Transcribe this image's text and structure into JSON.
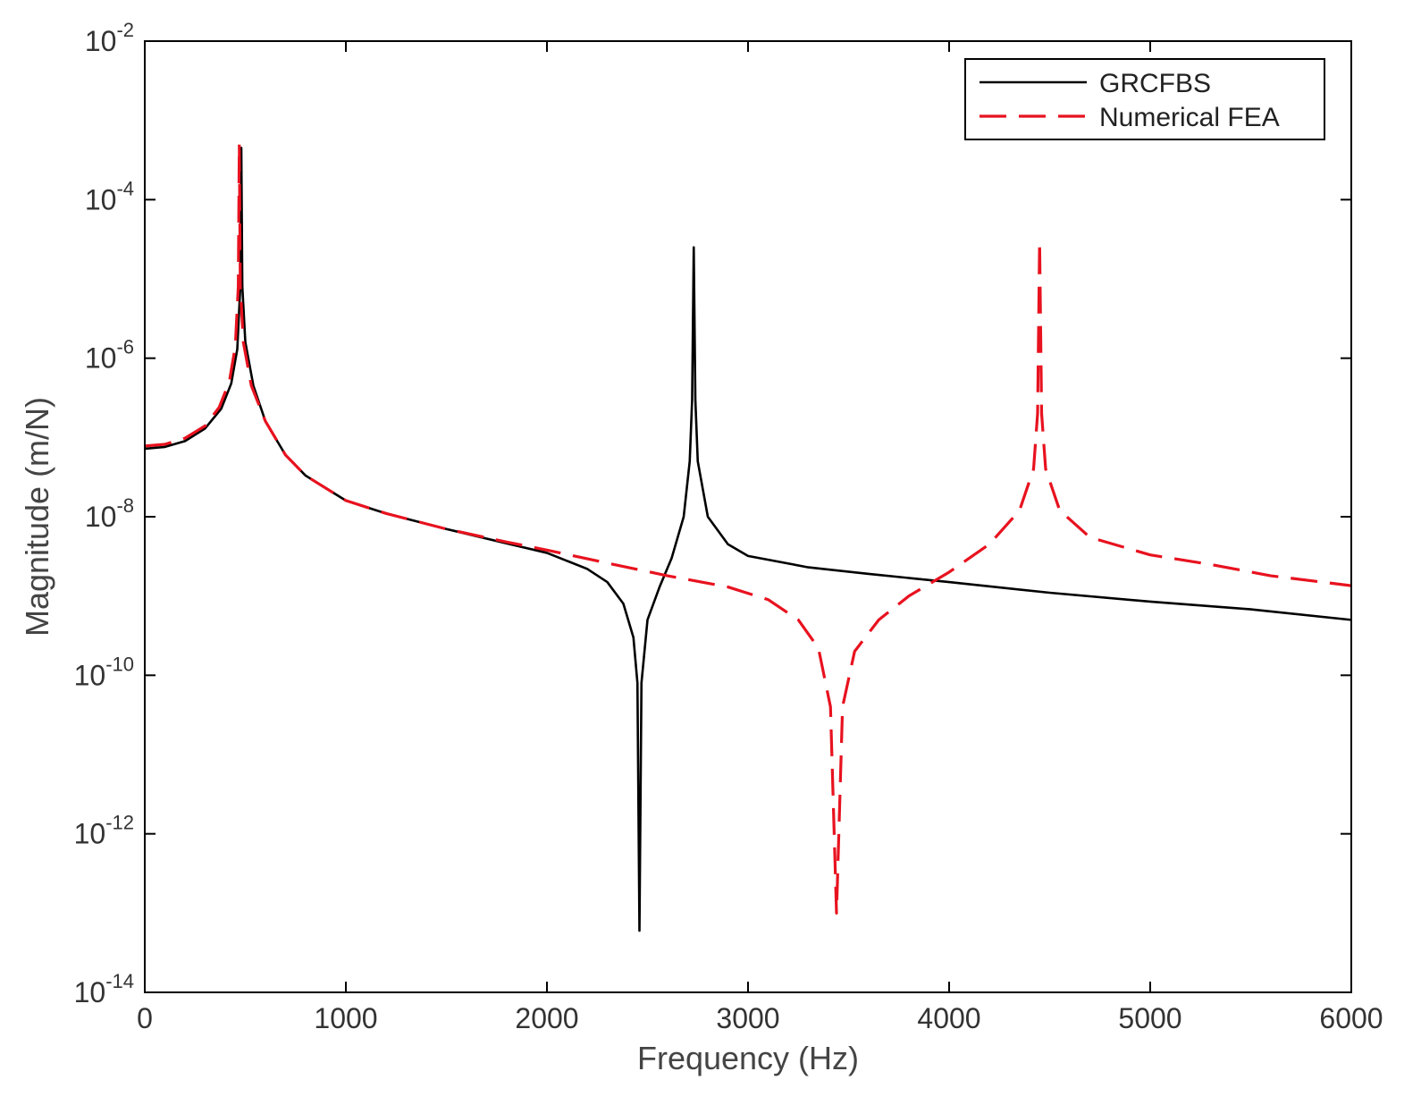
{
  "chart_data": {
    "type": "line",
    "title": "",
    "xlabel": "Frequency (Hz)",
    "ylabel": "Magnitude (m/N)",
    "xlim": [
      0,
      6000
    ],
    "ylim": [
      1e-14,
      0.01
    ],
    "yscale": "log",
    "grid": false,
    "legend_position": "top-right",
    "x_ticks": [
      0,
      1000,
      2000,
      3000,
      4000,
      5000,
      6000
    ],
    "x_tick_labels": [
      "0",
      "1000",
      "2000",
      "3000",
      "4000",
      "5000",
      "6000"
    ],
    "y_tick_exponents": [
      -14,
      -12,
      -10,
      -8,
      -6,
      -4,
      -2
    ],
    "y_tick_base": "10",
    "y_tick_labels": [
      "-14",
      "-12",
      "-10",
      "-8",
      "-6",
      "-4",
      "-2"
    ],
    "series": [
      {
        "name": "GRCFBS",
        "color": "#000000",
        "style": "solid",
        "resonances": [
          480,
          2730
        ],
        "antiresonances": [
          2460
        ],
        "points": [
          [
            0,
            7.2e-08
          ],
          [
            100,
            7.6e-08
          ],
          [
            200,
            9e-08
          ],
          [
            300,
            1.3e-07
          ],
          [
            380,
            2.3e-07
          ],
          [
            430,
            4.8e-07
          ],
          [
            460,
            1.3e-06
          ],
          [
            475,
            8e-06
          ],
          [
            480,
            0.00045
          ],
          [
            485,
            8e-06
          ],
          [
            500,
            1.6e-06
          ],
          [
            540,
            4.5e-07
          ],
          [
            600,
            1.6e-07
          ],
          [
            700,
            6e-08
          ],
          [
            800,
            3.3e-08
          ],
          [
            1000,
            1.6e-08
          ],
          [
            1200,
            1.1e-08
          ],
          [
            1500,
            7e-09
          ],
          [
            1800,
            4.6e-09
          ],
          [
            2000,
            3.5e-09
          ],
          [
            2200,
            2.2e-09
          ],
          [
            2300,
            1.5e-09
          ],
          [
            2380,
            8e-10
          ],
          [
            2430,
            3e-10
          ],
          [
            2450,
            8e-11
          ],
          [
            2460,
            6e-14
          ],
          [
            2470,
            8e-11
          ],
          [
            2500,
            5e-10
          ],
          [
            2560,
            1.3e-09
          ],
          [
            2620,
            3e-09
          ],
          [
            2680,
            1e-08
          ],
          [
            2710,
            5e-08
          ],
          [
            2722,
            3e-07
          ],
          [
            2730,
            2.5e-05
          ],
          [
            2738,
            3e-07
          ],
          [
            2750,
            5e-08
          ],
          [
            2800,
            1e-08
          ],
          [
            2900,
            4.5e-09
          ],
          [
            3000,
            3.2e-09
          ],
          [
            3300,
            2.3e-09
          ],
          [
            3600,
            1.9e-09
          ],
          [
            4000,
            1.5e-09
          ],
          [
            4500,
            1.1e-09
          ],
          [
            5000,
            8.5e-10
          ],
          [
            5500,
            6.8e-10
          ],
          [
            6000,
            5e-10
          ]
        ]
      },
      {
        "name": "Numerical FEA",
        "color": "#e8121f",
        "style": "dashed",
        "resonances": [
          470,
          4450
        ],
        "antiresonances": [
          3440
        ],
        "points": [
          [
            0,
            7.8e-08
          ],
          [
            100,
            8.2e-08
          ],
          [
            200,
            9.8e-08
          ],
          [
            300,
            1.4e-07
          ],
          [
            370,
            2.4e-07
          ],
          [
            420,
            5e-07
          ],
          [
            450,
            1.4e-06
          ],
          [
            465,
            8e-06
          ],
          [
            470,
            0.0005
          ],
          [
            475,
            8e-06
          ],
          [
            490,
            1.6e-06
          ],
          [
            530,
            4.5e-07
          ],
          [
            600,
            1.6e-07
          ],
          [
            700,
            6e-08
          ],
          [
            800,
            3.3e-08
          ],
          [
            1000,
            1.6e-08
          ],
          [
            1200,
            1.1e-08
          ],
          [
            1500,
            7e-09
          ],
          [
            1800,
            4.8e-09
          ],
          [
            2000,
            3.8e-09
          ],
          [
            2300,
            2.6e-09
          ],
          [
            2600,
            1.8e-09
          ],
          [
            2900,
            1.3e-09
          ],
          [
            3100,
            9e-10
          ],
          [
            3250,
            5e-10
          ],
          [
            3350,
            2.2e-10
          ],
          [
            3410,
            4e-11
          ],
          [
            3440,
            1e-13
          ],
          [
            3470,
            4e-11
          ],
          [
            3530,
            2e-10
          ],
          [
            3650,
            5e-10
          ],
          [
            3800,
            1e-09
          ],
          [
            4000,
            2e-09
          ],
          [
            4200,
            4.5e-09
          ],
          [
            4350,
            1.2e-08
          ],
          [
            4420,
            4e-08
          ],
          [
            4440,
            2e-07
          ],
          [
            4450,
            3e-05
          ],
          [
            4460,
            2e-07
          ],
          [
            4480,
            4e-08
          ],
          [
            4550,
            1.2e-08
          ],
          [
            4700,
            5.5e-09
          ],
          [
            5000,
            3.3e-09
          ],
          [
            5300,
            2.5e-09
          ],
          [
            5600,
            1.8e-09
          ],
          [
            6000,
            1.35e-09
          ]
        ]
      }
    ]
  }
}
